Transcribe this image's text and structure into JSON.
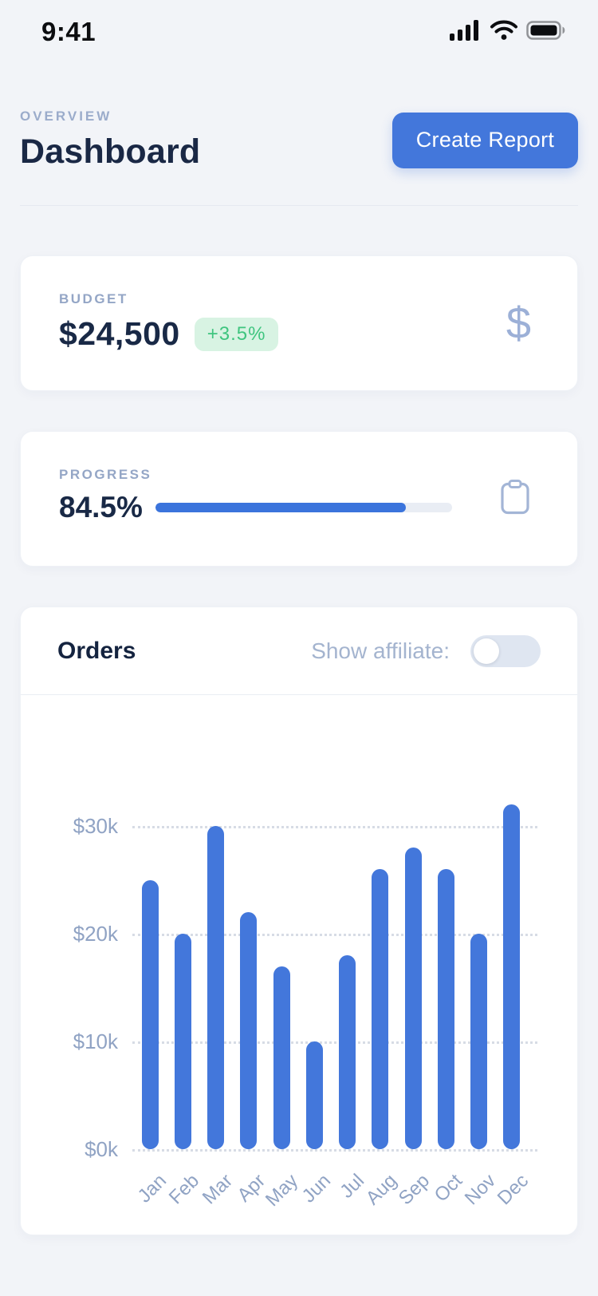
{
  "status_bar": {
    "time": "9:41"
  },
  "icons": {
    "status": [
      "signal-icon",
      "wifi-icon",
      "battery-icon"
    ],
    "budget": "dollar-icon",
    "progress": "clipboard-icon"
  },
  "header": {
    "eyebrow": "OVERVIEW",
    "title": "Dashboard",
    "create_report_label": "Create Report"
  },
  "budget_card": {
    "label": "BUDGET",
    "value": "$24,500",
    "delta": "+3.5%"
  },
  "progress_card": {
    "label": "PROGRESS",
    "value": "84.5%",
    "progress_percent": 84.5
  },
  "orders_card": {
    "title": "Orders",
    "toggle_label": "Show affiliate:",
    "toggle_state": "off"
  },
  "colors": {
    "accent_blue": "#4377DB",
    "green_text": "#3FC57F",
    "green_bg": "#D8F3E3",
    "navy_text": "#192946",
    "muted_label": "#94A6C6",
    "page_bg": "#F2F4F8"
  },
  "chart_data": {
    "type": "bar",
    "title": "Orders",
    "categories": [
      "Jan",
      "Feb",
      "Mar",
      "Apr",
      "May",
      "Jun",
      "Jul",
      "Aug",
      "Sep",
      "Oct",
      "Nov",
      "Dec"
    ],
    "values": [
      25,
      20,
      30,
      22,
      17,
      10,
      18,
      26,
      28,
      26,
      20,
      32
    ],
    "value_unit": "thousand USD",
    "yticks": [
      {
        "label": "$0k",
        "value": 0
      },
      {
        "label": "$10k",
        "value": 10
      },
      {
        "label": "$20k",
        "value": 20
      },
      {
        "label": "$30k",
        "value": 30
      }
    ],
    "ylim": [
      0,
      33
    ],
    "xlabel": "",
    "ylabel": "",
    "legend": "none",
    "grid": "dotted-horizontal",
    "x_label_rotation": -45,
    "bar_color": "#4377DB"
  }
}
